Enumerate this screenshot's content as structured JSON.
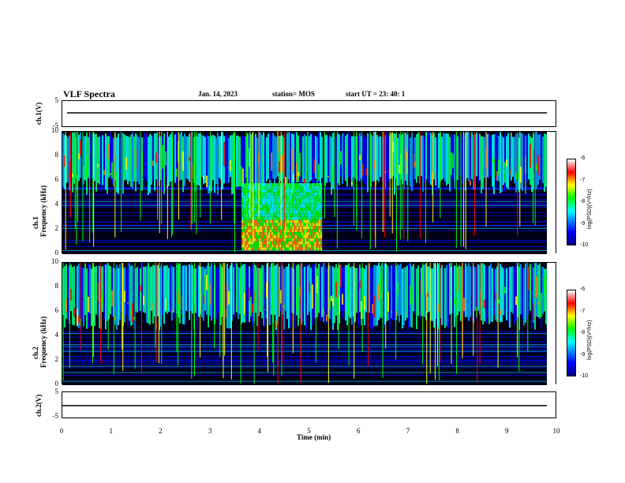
{
  "header": {
    "title": "VLF Spectra",
    "date": "Jan. 14, 2023",
    "station": "station= MOS",
    "start_ut": "start UT = 23: 40: 1"
  },
  "panels": {
    "ch1_voltage": {
      "ylabel": "ch.1(V)",
      "tick_top": "5",
      "tick_bottom": "-5"
    },
    "ch1_spec": {
      "ylabel_line1": "ch.1",
      "ylabel_line2": "Frequency (kHz)"
    },
    "ch2_spec": {
      "ylabel_line1": "ch.2",
      "ylabel_line2": "Frequency (kHz)"
    },
    "ch2_voltage": {
      "ylabel": "ch.2(V)",
      "tick_top": "5",
      "tick_bottom": "-5"
    },
    "freq_ticks": [
      "0",
      "2",
      "4",
      "6",
      "8",
      "10"
    ]
  },
  "colorbar": {
    "label": "log(PSD)(V²/Hz)",
    "ticks": [
      "-6",
      "-7",
      "-8",
      "-9",
      "-10"
    ]
  },
  "xaxis": {
    "label": "Time (min)",
    "ticks": [
      "0",
      "1",
      "2",
      "3",
      "4",
      "5",
      "6",
      "7",
      "8",
      "9",
      "10"
    ]
  },
  "chart_data": {
    "type": "heatmap",
    "title": "VLF Spectra",
    "xlabel": "Time (min)",
    "ylabel": "Frequency (kHz)",
    "xlim": [
      0,
      10
    ],
    "ylim": [
      0,
      10
    ],
    "colorbar_range": [
      -10,
      -6
    ],
    "colormap": [
      "#00007f",
      "#0000ff",
      "#00ffff",
      "#00ff00",
      "#ffff00",
      "#ff0000",
      "#ffffff"
    ],
    "voltage_ylim": [
      -5,
      5
    ],
    "ch1": {
      "broadband_window_min": [
        3.7,
        5.35
      ],
      "broadband_band_khz": [
        0.3,
        5.8
      ],
      "sferic_band_khz": [
        4.8,
        10
      ]
    },
    "ch2": {
      "sferic_band_khz": [
        4.5,
        10
      ]
    }
  }
}
